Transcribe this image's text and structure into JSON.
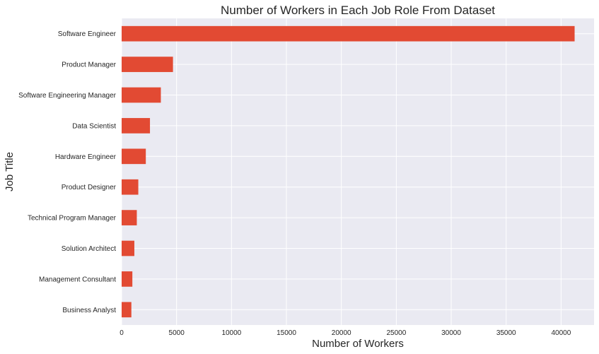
{
  "chart_data": {
    "type": "bar",
    "orientation": "horizontal",
    "title": "Number of Workers in Each Job Role From Dataset",
    "xlabel": "Number of Workers",
    "ylabel": "Job Title",
    "categories": [
      "Software Engineer",
      "Product Manager",
      "Software Engineering Manager",
      "Data Scientist",
      "Hardware Engineer",
      "Product Designer",
      "Technical Program Manager",
      "Solution Architect",
      "Management Consultant",
      "Business Analyst"
    ],
    "values": [
      41231,
      4673,
      3569,
      2578,
      2200,
      1516,
      1381,
      1157,
      976,
      885
    ],
    "xlim": [
      0,
      43000
    ],
    "xticks": [
      0,
      5000,
      10000,
      15000,
      20000,
      25000,
      30000,
      35000,
      40000
    ],
    "grid": true,
    "colors": {
      "bar": "#E24A33",
      "plot_background": "#EAEAF2",
      "grid": "#FFFFFF",
      "text": "#262626"
    }
  }
}
